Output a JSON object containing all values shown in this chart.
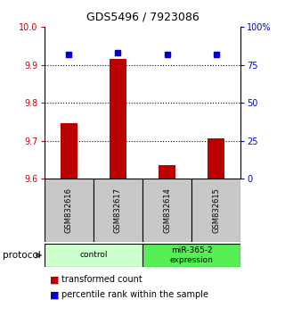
{
  "title": "GDS5496 / 7923086",
  "categories": [
    "GSM832616",
    "GSM832617",
    "GSM832614",
    "GSM832615"
  ],
  "bar_values": [
    9.745,
    9.915,
    9.635,
    9.705
  ],
  "percentile_values": [
    82,
    83,
    82,
    82
  ],
  "ylim_left": [
    9.6,
    10.0
  ],
  "ylim_right": [
    0,
    100
  ],
  "yticks_left": [
    9.6,
    9.7,
    9.8,
    9.9,
    10.0
  ],
  "yticks_right": [
    0,
    25,
    50,
    75,
    100
  ],
  "ytick_labels_right": [
    "0",
    "25",
    "50",
    "75",
    "100%"
  ],
  "dotted_lines": [
    9.7,
    9.8,
    9.9
  ],
  "bar_color": "#bb0000",
  "point_color": "#0000cc",
  "groups": [
    {
      "label": "control",
      "indices": [
        0,
        1
      ],
      "color": "#ccffcc"
    },
    {
      "label": "miR-365-2\nexpression",
      "indices": [
        2,
        3
      ],
      "color": "#55ee55"
    }
  ],
  "protocol_label": "protocol",
  "legend_items": [
    {
      "color": "#bb0000",
      "label": "transformed count"
    },
    {
      "color": "#0000cc",
      "label": "percentile rank within the sample"
    }
  ],
  "tick_color_left": "#cc0000",
  "tick_color_right": "#0000cc",
  "bar_width": 0.35,
  "sample_box_color": "#c8c8c8",
  "title_fontsize": 9,
  "tick_fontsize": 7,
  "legend_fontsize": 7
}
